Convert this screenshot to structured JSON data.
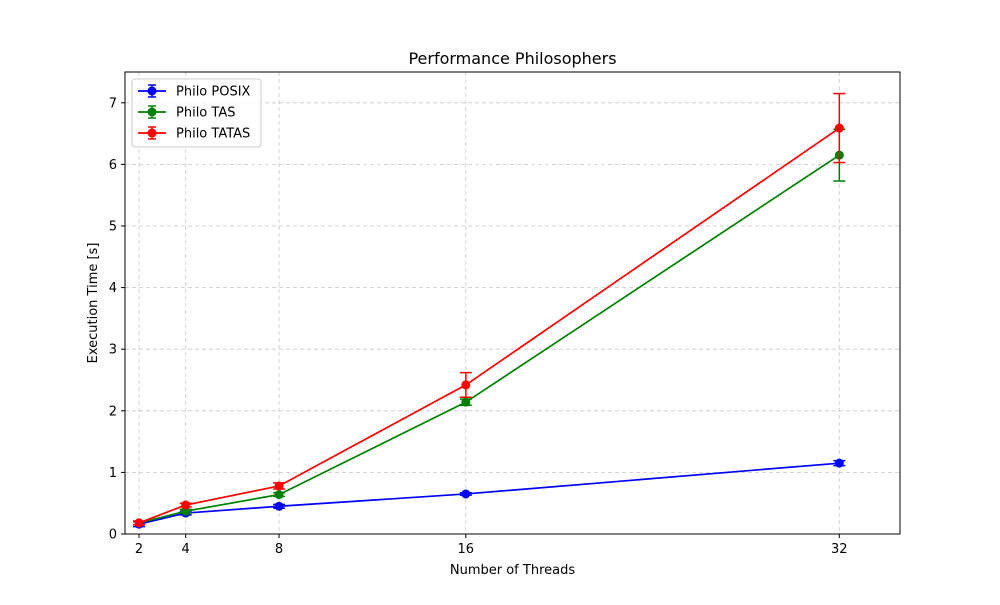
{
  "chart_data": {
    "type": "line",
    "title": "Performance Philosophers",
    "xlabel": "Number of Threads",
    "ylabel": "Execution Time [s]",
    "x": [
      2,
      4,
      8,
      16,
      32
    ],
    "xticks": [
      2,
      4,
      8,
      16,
      32
    ],
    "yticks": [
      0,
      1,
      2,
      3,
      4,
      5,
      6,
      7
    ],
    "xlim": [
      1.4,
      34.6
    ],
    "ylim": [
      0,
      7.5
    ],
    "grid": true,
    "legend_position": "top-left",
    "series": [
      {
        "name": "Philo POSIX",
        "color": "#0000ff",
        "values": [
          0.16,
          0.34,
          0.45,
          0.65,
          1.15
        ],
        "errors": [
          0.04,
          0.03,
          0.03,
          0.02,
          0.04
        ]
      },
      {
        "name": "Philo TAS",
        "color": "#008000",
        "values": [
          0.18,
          0.37,
          0.64,
          2.14,
          6.15
        ],
        "errors": [
          0.03,
          0.03,
          0.03,
          0.05,
          0.42
        ]
      },
      {
        "name": "Philo TATAS",
        "color": "#ff0000",
        "values": [
          0.18,
          0.47,
          0.78,
          2.42,
          6.59
        ],
        "errors": [
          0.03,
          0.03,
          0.05,
          0.2,
          0.56
        ]
      }
    ]
  }
}
